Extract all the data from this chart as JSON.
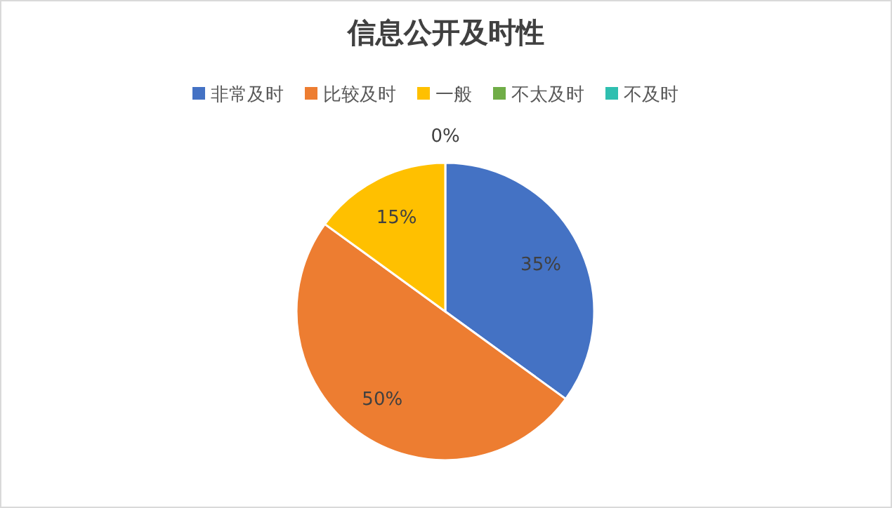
{
  "chart_data": {
    "type": "pie",
    "title": "信息公开及时性",
    "categories": [
      "非常及时",
      "比较及时",
      "一般",
      "不太及时",
      "不及时"
    ],
    "values": [
      35,
      50,
      15,
      0,
      0
    ],
    "colors": [
      "#4472c4",
      "#ed7d31",
      "#ffc000",
      "#70ad47",
      "#2fbfb0"
    ],
    "value_labels": [
      "35%",
      "50%",
      "15%",
      "0%",
      null
    ],
    "legend": "top"
  }
}
